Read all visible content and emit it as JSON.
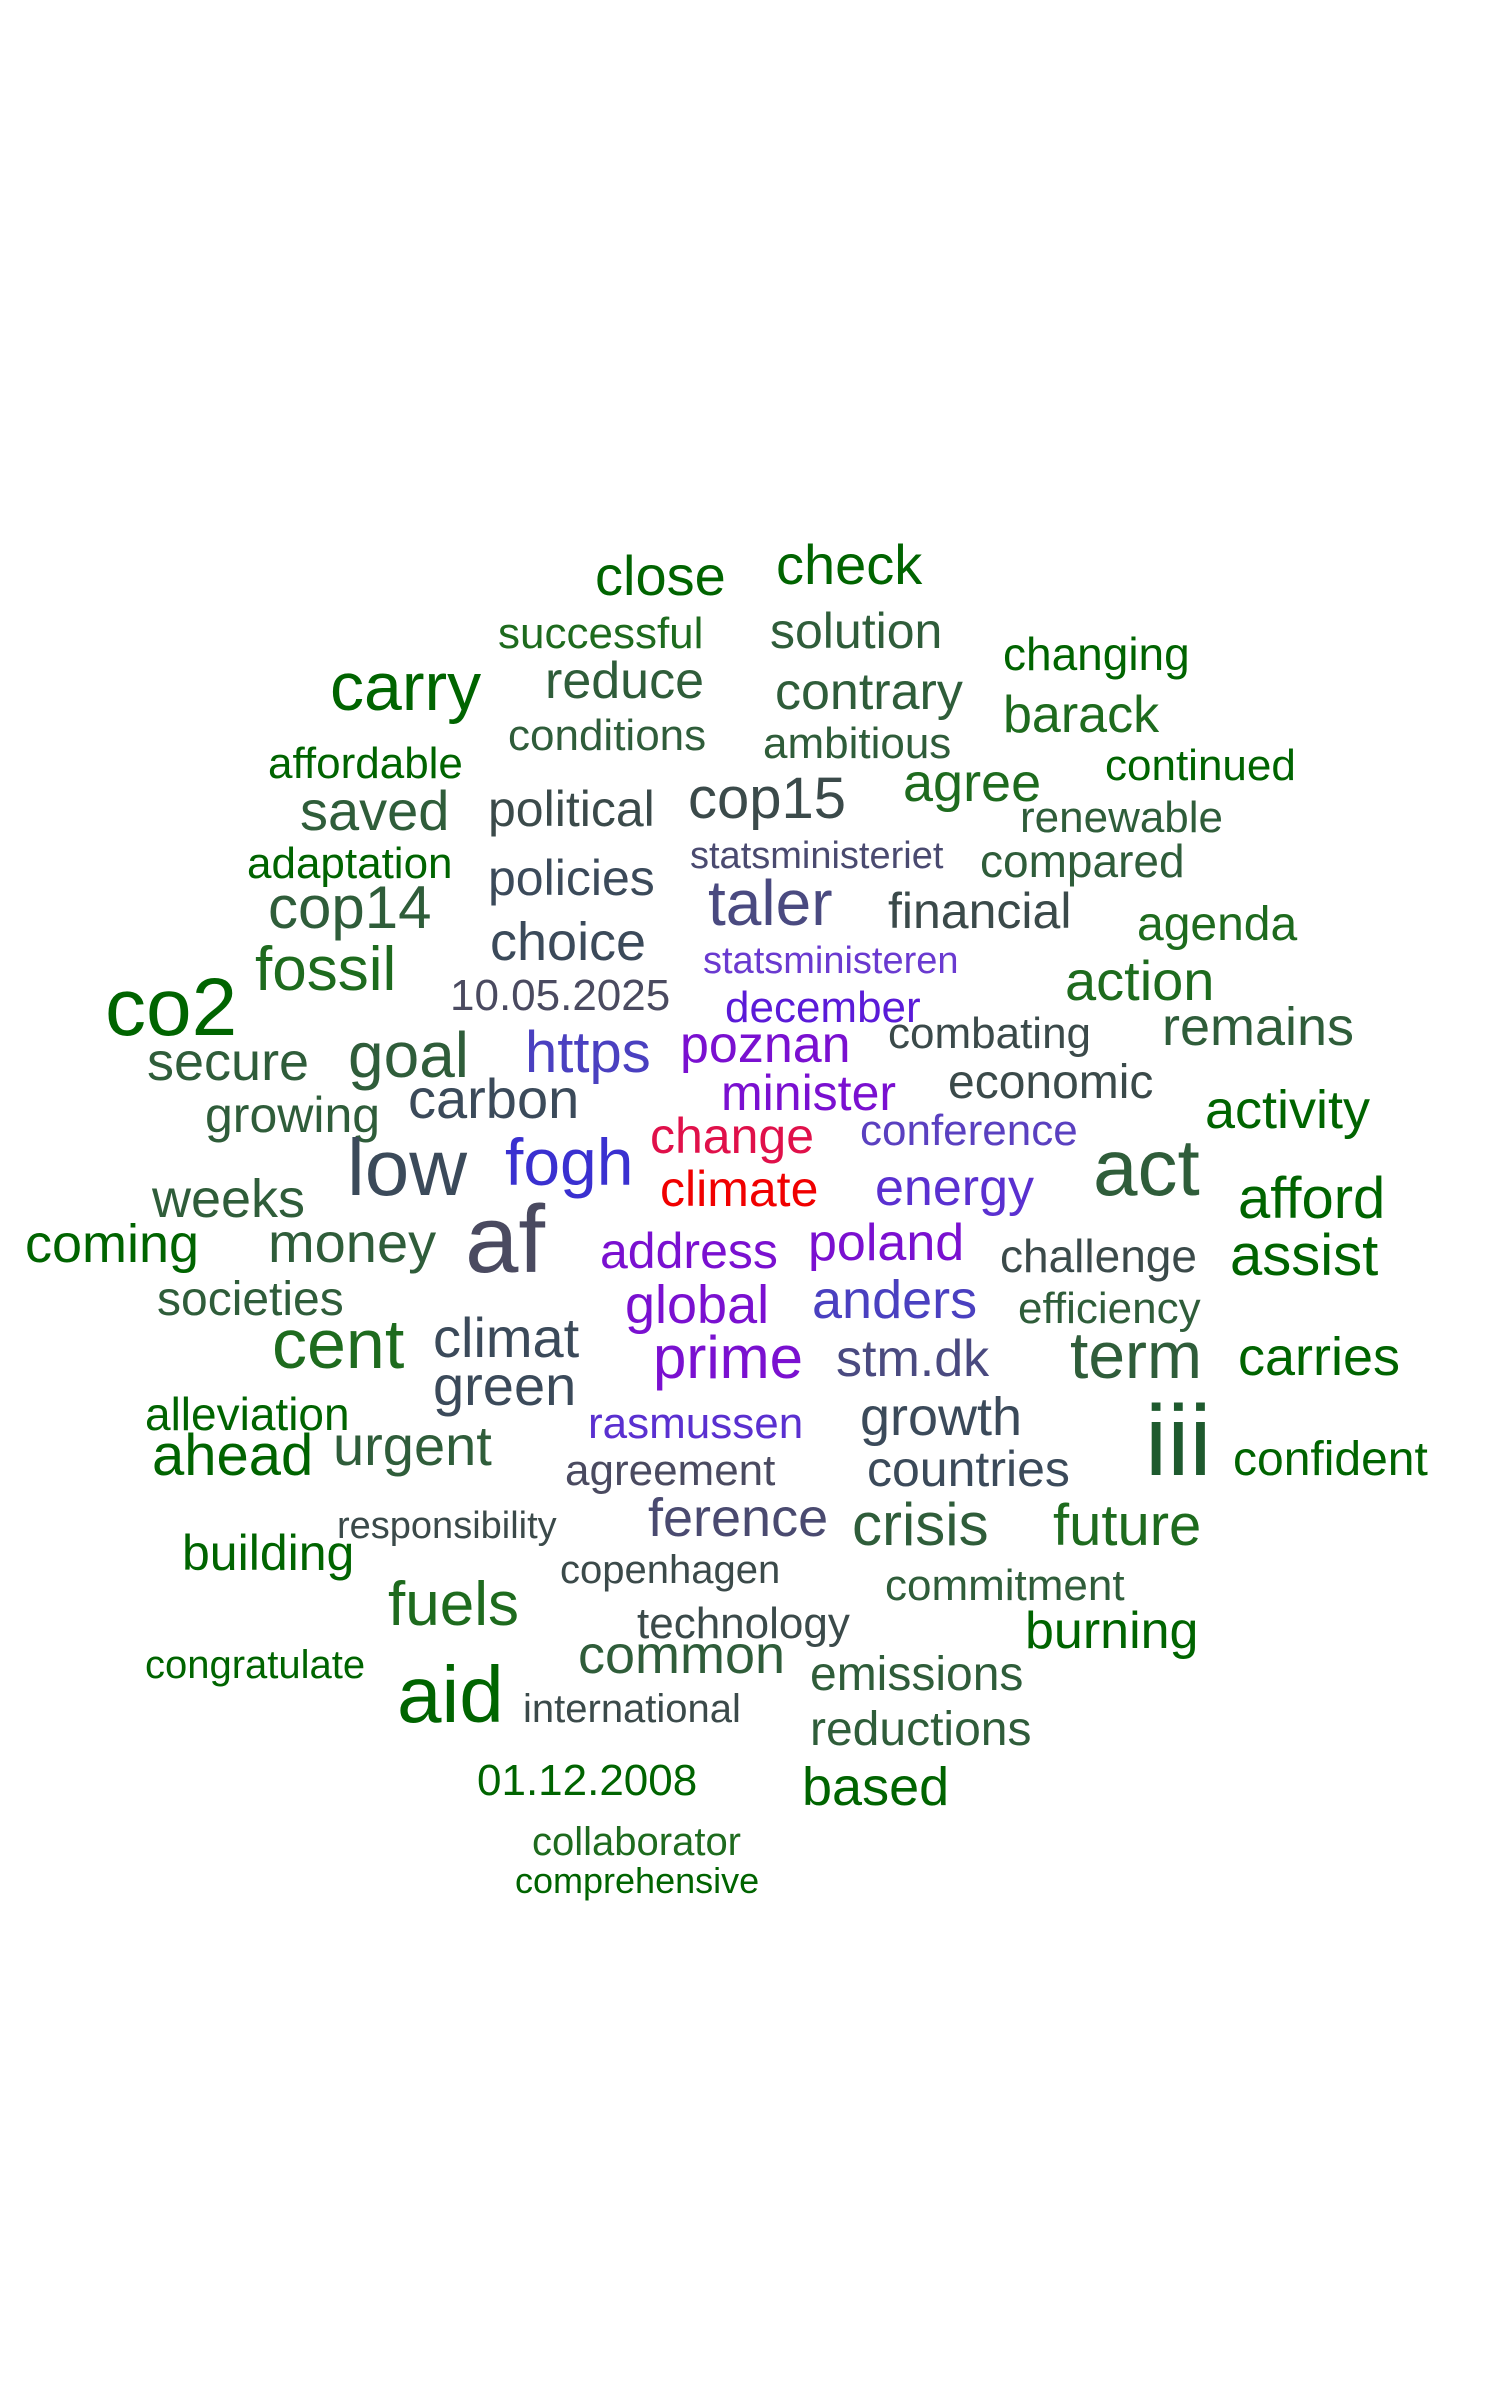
{
  "words": [
    {
      "text": "close",
      "color": "#006400"
    },
    {
      "text": "check",
      "color": "#006400"
    },
    {
      "text": "successful",
      "color": "#1e6b1e"
    },
    {
      "text": "solution",
      "color": "#2f5d3a"
    },
    {
      "text": "changing",
      "color": "#006400"
    },
    {
      "text": "carry",
      "color": "#006400"
    },
    {
      "text": "reduce",
      "color": "#2f5d3a"
    },
    {
      "text": "contrary",
      "color": "#2f5d3a"
    },
    {
      "text": "barack",
      "color": "#1e6b1e"
    },
    {
      "text": "conditions",
      "color": "#2f5d3a"
    },
    {
      "text": "ambitious",
      "color": "#2f5d3a"
    },
    {
      "text": "affordable",
      "color": "#006400"
    },
    {
      "text": "continued",
      "color": "#006400"
    },
    {
      "text": "agree",
      "color": "#1e6b1e"
    },
    {
      "text": "saved",
      "color": "#2f5d3a"
    },
    {
      "text": "political",
      "color": "#3b4a4a"
    },
    {
      "text": "cop15",
      "color": "#3b4a4a"
    },
    {
      "text": "renewable",
      "color": "#2f5d3a"
    },
    {
      "text": "adaptation",
      "color": "#006400"
    },
    {
      "text": "statsministeriet",
      "color": "#4a4a70"
    },
    {
      "text": "compared",
      "color": "#2f5d3a"
    },
    {
      "text": "policies",
      "color": "#3b4a5a"
    },
    {
      "text": "cop14",
      "color": "#2f5d3a"
    },
    {
      "text": "taler",
      "color": "#4a4a80"
    },
    {
      "text": "financial",
      "color": "#3b4a4a"
    },
    {
      "text": "agenda",
      "color": "#1e6b1e"
    },
    {
      "text": "co2",
      "color": "#006400"
    },
    {
      "text": "fossil",
      "color": "#1e6b1e"
    },
    {
      "text": "choice",
      "color": "#3b4a5a"
    },
    {
      "text": "statsministeren",
      "color": "#6a3ad0"
    },
    {
      "text": "action",
      "color": "#1e6b1e"
    },
    {
      "text": "10.05.2025",
      "color": "#4a4a60"
    },
    {
      "text": "december",
      "color": "#5a1ad8"
    },
    {
      "text": "remains",
      "color": "#2f5d3a"
    },
    {
      "text": "goal",
      "color": "#2f5d3a"
    },
    {
      "text": "poznan",
      "color": "#7a10d0"
    },
    {
      "text": "combating",
      "color": "#3b4a4a"
    },
    {
      "text": "secure",
      "color": "#2f5d3a"
    },
    {
      "text": "https",
      "color": "#4a40c0"
    },
    {
      "text": "carbon",
      "color": "#3b4a5a"
    },
    {
      "text": "minister",
      "color": "#7a10d0"
    },
    {
      "text": "economic",
      "color": "#3b4a4a"
    },
    {
      "text": "growing",
      "color": "#2f5d3a"
    },
    {
      "text": "activity",
      "color": "#006400"
    },
    {
      "text": "change",
      "color": "#e0104a"
    },
    {
      "text": "conference",
      "color": "#5a40c0"
    },
    {
      "text": "low",
      "color": "#3b4a5a"
    },
    {
      "text": "fogh",
      "color": "#3a30d0"
    },
    {
      "text": "act",
      "color": "#2f5d3a"
    },
    {
      "text": "climate",
      "color": "#f00000"
    },
    {
      "text": "energy",
      "color": "#5a30d0"
    },
    {
      "text": "weeks",
      "color": "#2f5d3a"
    },
    {
      "text": "afford",
      "color": "#006400"
    },
    {
      "text": "coming",
      "color": "#006400"
    },
    {
      "text": "money",
      "color": "#2f5d3a"
    },
    {
      "text": "af",
      "color": "#4a4a60"
    },
    {
      "text": "address",
      "color": "#7a10d0"
    },
    {
      "text": "poland",
      "color": "#7a10d0"
    },
    {
      "text": "challenge",
      "color": "#3b4a4a"
    },
    {
      "text": "assist",
      "color": "#006400"
    },
    {
      "text": "societies",
      "color": "#2f5d3a"
    },
    {
      "text": "global",
      "color": "#7a10d0"
    },
    {
      "text": "anders",
      "color": "#4a40c0"
    },
    {
      "text": "efficiency",
      "color": "#2f5d3a"
    },
    {
      "text": "cent",
      "color": "#1e6b1e"
    },
    {
      "text": "climat",
      "color": "#3b4a5a"
    },
    {
      "text": "prime",
      "color": "#7a10d0"
    },
    {
      "text": "stm.dk",
      "color": "#4a4a80"
    },
    {
      "text": "term",
      "color": "#2f5d3a"
    },
    {
      "text": "carries",
      "color": "#006400"
    },
    {
      "text": "green",
      "color": "#3b4a5a"
    },
    {
      "text": "alleviation",
      "color": "#006400"
    },
    {
      "text": "rasmussen",
      "color": "#5a30d0"
    },
    {
      "text": "growth",
      "color": "#3b4a5a"
    },
    {
      "text": "iii",
      "color": "#1e5a2e"
    },
    {
      "text": "ahead",
      "color": "#006400"
    },
    {
      "text": "urgent",
      "color": "#2f5d3a"
    },
    {
      "text": "agreement",
      "color": "#4a4a60"
    },
    {
      "text": "countries",
      "color": "#3b4a5a"
    },
    {
      "text": "confident",
      "color": "#006400"
    },
    {
      "text": "responsibility",
      "color": "#3b4a4a"
    },
    {
      "text": "ference",
      "color": "#4a4a70"
    },
    {
      "text": "crisis",
      "color": "#2f5d3a"
    },
    {
      "text": "future",
      "color": "#1e6b1e"
    },
    {
      "text": "building",
      "color": "#006400"
    },
    {
      "text": "copenhagen",
      "color": "#3b4a4a"
    },
    {
      "text": "fuels",
      "color": "#1e6b1e"
    },
    {
      "text": "commitment",
      "color": "#2f5d3a"
    },
    {
      "text": "technology",
      "color": "#3b4a4a"
    },
    {
      "text": "burning",
      "color": "#006400"
    },
    {
      "text": "congratulate",
      "color": "#006400"
    },
    {
      "text": "common",
      "color": "#2f5d3a"
    },
    {
      "text": "emissions",
      "color": "#2f5d3a"
    },
    {
      "text": "aid",
      "color": "#006400"
    },
    {
      "text": "international",
      "color": "#3b4a4a"
    },
    {
      "text": "reductions",
      "color": "#2f5d3a"
    },
    {
      "text": "01.12.2008",
      "color": "#006400"
    },
    {
      "text": "based",
      "color": "#006400"
    },
    {
      "text": "collaborator",
      "color": "#1e6b1e"
    },
    {
      "text": "comprehensive",
      "color": "#006400"
    }
  ]
}
